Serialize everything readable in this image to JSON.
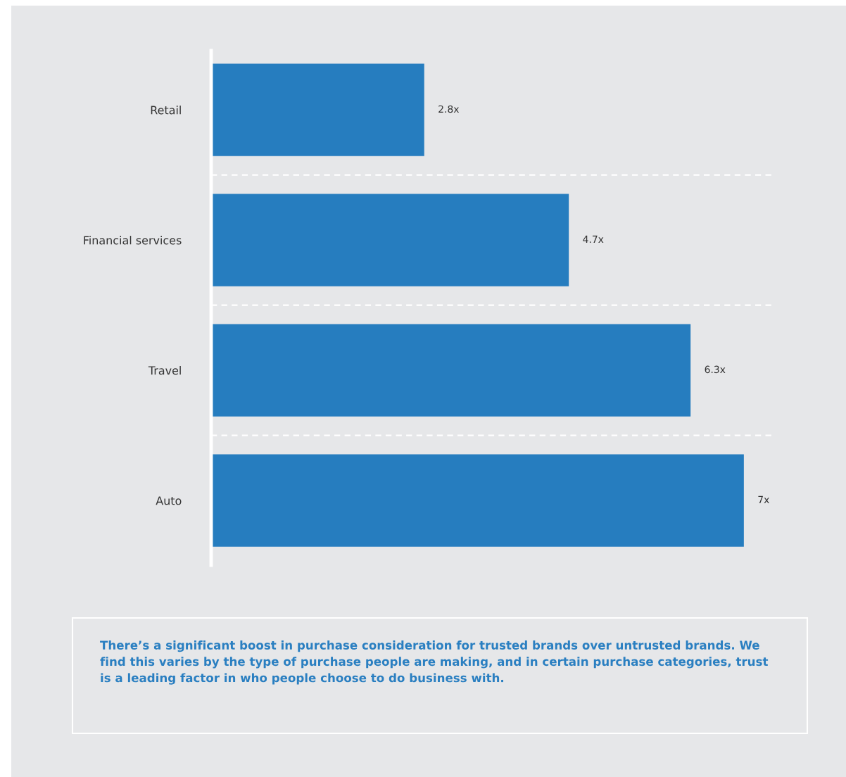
{
  "chart_data": {
    "type": "bar",
    "orientation": "horizontal",
    "categories": [
      "Retail",
      "Financial services",
      "Travel",
      "Auto"
    ],
    "values": [
      2.8,
      4.7,
      6.3,
      7
    ],
    "value_labels": [
      "2.8x",
      "4.7x",
      "6.3x",
      "7x"
    ],
    "color": "#267dbf",
    "grid": "y",
    "annotations": [
      "There’s a significant boost in purchase consideration for trusted brands over untrusted brands. We find this varies by the type of purchase people are making, and in certain purchase categories, trust is a leading factor in who people choose to do business with."
    ]
  }
}
